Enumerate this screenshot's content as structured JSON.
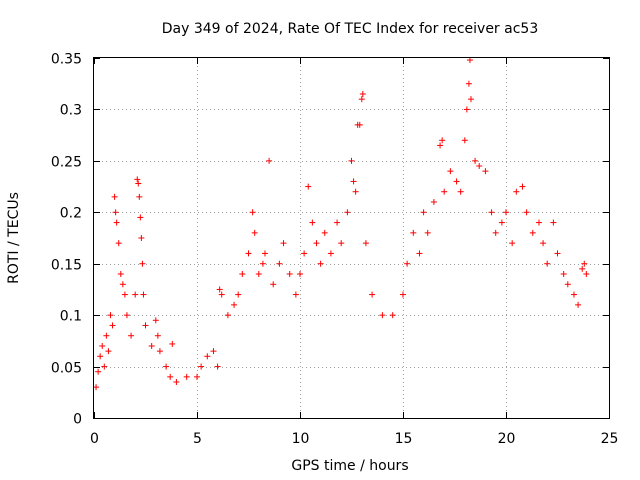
{
  "chart_data": {
    "type": "scatter",
    "title": "Day 349 of 2024, Rate Of TEC Index for receiver ac53",
    "xlabel": "GPS time / hours",
    "ylabel": "ROTI / TECUs",
    "xlim": [
      0,
      25
    ],
    "ylim": [
      0,
      0.35
    ],
    "x_ticks": [
      "0",
      "5",
      "10",
      "15",
      "20",
      "25"
    ],
    "y_ticks": [
      "0",
      "0.05",
      "0.1",
      "0.15",
      "0.2",
      "0.25",
      "0.3",
      "0.35"
    ],
    "grid": true,
    "marker": "+",
    "color": "#ff0000",
    "series": [
      {
        "points": [
          [
            0.1,
            0.03
          ],
          [
            0.2,
            0.045
          ],
          [
            0.3,
            0.06
          ],
          [
            0.4,
            0.07
          ],
          [
            0.5,
            0.05
          ],
          [
            0.6,
            0.08
          ],
          [
            0.7,
            0.065
          ],
          [
            0.8,
            0.1
          ],
          [
            0.9,
            0.09
          ],
          [
            1.0,
            0.215
          ],
          [
            1.05,
            0.2
          ],
          [
            1.1,
            0.19
          ],
          [
            1.2,
            0.17
          ],
          [
            1.3,
            0.14
          ],
          [
            1.4,
            0.13
          ],
          [
            1.5,
            0.12
          ],
          [
            1.6,
            0.1
          ],
          [
            1.8,
            0.08
          ],
          [
            2.0,
            0.12
          ],
          [
            2.1,
            0.232
          ],
          [
            2.15,
            0.228
          ],
          [
            2.2,
            0.215
          ],
          [
            2.25,
            0.195
          ],
          [
            2.3,
            0.175
          ],
          [
            2.35,
            0.15
          ],
          [
            2.4,
            0.12
          ],
          [
            2.5,
            0.09
          ],
          [
            2.8,
            0.07
          ],
          [
            3.0,
            0.095
          ],
          [
            3.1,
            0.08
          ],
          [
            3.2,
            0.065
          ],
          [
            3.5,
            0.05
          ],
          [
            3.7,
            0.04
          ],
          [
            3.8,
            0.072
          ],
          [
            4.0,
            0.035
          ],
          [
            4.5,
            0.04
          ],
          [
            5.0,
            0.04
          ],
          [
            5.2,
            0.05
          ],
          [
            5.5,
            0.06
          ],
          [
            5.8,
            0.065
          ],
          [
            6.0,
            0.05
          ],
          [
            6.1,
            0.125
          ],
          [
            6.2,
            0.12
          ],
          [
            6.5,
            0.1
          ],
          [
            6.8,
            0.11
          ],
          [
            7.0,
            0.12
          ],
          [
            7.2,
            0.14
          ],
          [
            7.5,
            0.16
          ],
          [
            7.7,
            0.2
          ],
          [
            7.8,
            0.18
          ],
          [
            8.0,
            0.14
          ],
          [
            8.2,
            0.15
          ],
          [
            8.3,
            0.16
          ],
          [
            8.5,
            0.25
          ],
          [
            8.7,
            0.13
          ],
          [
            9.0,
            0.15
          ],
          [
            9.2,
            0.17
          ],
          [
            9.5,
            0.14
          ],
          [
            9.8,
            0.12
          ],
          [
            10.0,
            0.14
          ],
          [
            10.2,
            0.16
          ],
          [
            10.4,
            0.225
          ],
          [
            10.6,
            0.19
          ],
          [
            10.8,
            0.17
          ],
          [
            11.0,
            0.15
          ],
          [
            11.2,
            0.18
          ],
          [
            11.5,
            0.16
          ],
          [
            11.8,
            0.19
          ],
          [
            12.0,
            0.17
          ],
          [
            12.3,
            0.2
          ],
          [
            12.5,
            0.25
          ],
          [
            12.6,
            0.23
          ],
          [
            12.7,
            0.22
          ],
          [
            12.8,
            0.285
          ],
          [
            12.9,
            0.285
          ],
          [
            13.0,
            0.31
          ],
          [
            13.05,
            0.315
          ],
          [
            13.2,
            0.17
          ],
          [
            13.5,
            0.12
          ],
          [
            14.0,
            0.1
          ],
          [
            14.5,
            0.1
          ],
          [
            15.0,
            0.12
          ],
          [
            15.2,
            0.15
          ],
          [
            15.5,
            0.18
          ],
          [
            15.8,
            0.16
          ],
          [
            16.0,
            0.2
          ],
          [
            16.2,
            0.18
          ],
          [
            16.5,
            0.21
          ],
          [
            16.8,
            0.265
          ],
          [
            16.9,
            0.27
          ],
          [
            17.0,
            0.22
          ],
          [
            17.3,
            0.24
          ],
          [
            17.6,
            0.23
          ],
          [
            17.8,
            0.22
          ],
          [
            18.0,
            0.27
          ],
          [
            18.1,
            0.3
          ],
          [
            18.2,
            0.325
          ],
          [
            18.25,
            0.348
          ],
          [
            18.3,
            0.31
          ],
          [
            18.5,
            0.25
          ],
          [
            18.7,
            0.245
          ],
          [
            19.0,
            0.24
          ],
          [
            19.3,
            0.2
          ],
          [
            19.5,
            0.18
          ],
          [
            19.8,
            0.19
          ],
          [
            20.0,
            0.2
          ],
          [
            20.3,
            0.17
          ],
          [
            20.5,
            0.22
          ],
          [
            20.8,
            0.225
          ],
          [
            21.0,
            0.2
          ],
          [
            21.3,
            0.18
          ],
          [
            21.6,
            0.19
          ],
          [
            21.8,
            0.17
          ],
          [
            22.0,
            0.15
          ],
          [
            22.3,
            0.19
          ],
          [
            22.5,
            0.16
          ],
          [
            22.8,
            0.14
          ],
          [
            23.0,
            0.13
          ],
          [
            23.3,
            0.12
          ],
          [
            23.5,
            0.11
          ],
          [
            23.7,
            0.145
          ],
          [
            23.8,
            0.15
          ],
          [
            23.9,
            0.14
          ]
        ]
      }
    ]
  }
}
